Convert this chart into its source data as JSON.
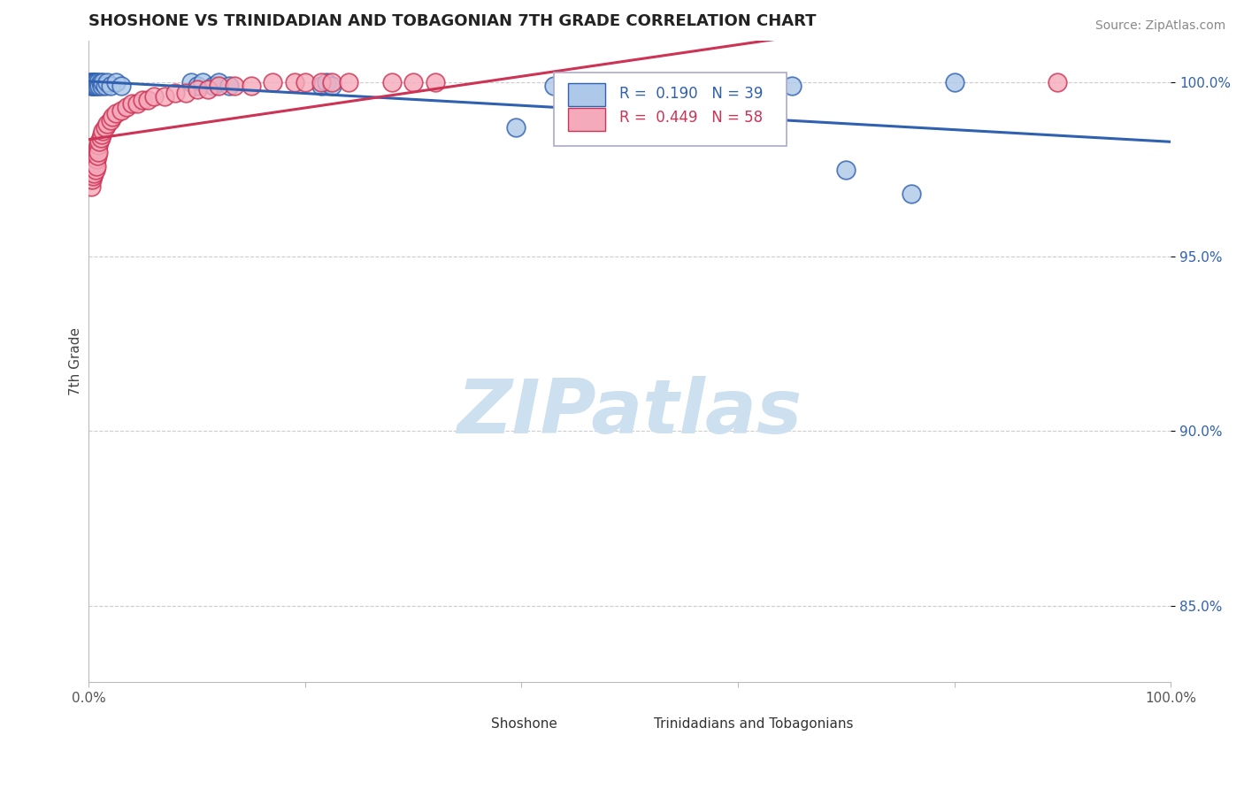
{
  "title": "SHOSHONE VS TRINIDADIAN AND TOBAGONIAN 7TH GRADE CORRELATION CHART",
  "source_text": "Source: ZipAtlas.com",
  "ylabel": "7th Grade",
  "ytick_labels": [
    "85.0%",
    "90.0%",
    "95.0%",
    "100.0%"
  ],
  "ytick_values": [
    0.85,
    0.9,
    0.95,
    1.0
  ],
  "legend_label1": "Shoshone",
  "legend_label2": "Trinidadians and Tobagonians",
  "r1": 0.19,
  "n1": 39,
  "r2": 0.449,
  "n2": 58,
  "blue_color": "#adc8e8",
  "pink_color": "#f5aabb",
  "blue_line_color": "#3060b0",
  "pink_line_color": "#cc3355",
  "watermark_color": "#cce0f0",
  "blue_x": [
    0.001,
    0.002,
    0.002,
    0.003,
    0.003,
    0.004,
    0.004,
    0.005,
    0.005,
    0.006,
    0.006,
    0.007,
    0.008,
    0.009,
    0.01,
    0.011,
    0.012,
    0.013,
    0.015,
    0.017,
    0.02,
    0.025,
    0.03,
    0.095,
    0.1,
    0.105,
    0.115,
    0.12,
    0.13,
    0.215,
    0.22,
    0.225,
    0.395,
    0.43,
    0.5,
    0.65,
    0.7,
    0.76,
    0.8
  ],
  "blue_y": [
    1.0,
    0.999,
    1.0,
    1.0,
    0.999,
    1.0,
    0.999,
    1.0,
    0.999,
    1.0,
    0.999,
    1.0,
    0.999,
    1.0,
    0.999,
    1.0,
    0.999,
    1.0,
    0.999,
    1.0,
    0.999,
    1.0,
    0.999,
    1.0,
    0.999,
    1.0,
    0.999,
    1.0,
    0.999,
    0.999,
    1.0,
    0.999,
    0.987,
    0.999,
    0.999,
    0.999,
    0.975,
    0.968,
    1.0
  ],
  "pink_x": [
    0.001,
    0.001,
    0.002,
    0.002,
    0.002,
    0.003,
    0.003,
    0.003,
    0.004,
    0.004,
    0.004,
    0.005,
    0.005,
    0.005,
    0.006,
    0.006,
    0.006,
    0.007,
    0.007,
    0.007,
    0.008,
    0.008,
    0.009,
    0.009,
    0.01,
    0.011,
    0.012,
    0.013,
    0.015,
    0.017,
    0.02,
    0.022,
    0.025,
    0.03,
    0.035,
    0.04,
    0.045,
    0.05,
    0.055,
    0.06,
    0.07,
    0.08,
    0.09,
    0.1,
    0.11,
    0.12,
    0.135,
    0.15,
    0.17,
    0.19,
    0.2,
    0.215,
    0.225,
    0.24,
    0.28,
    0.3,
    0.32,
    0.895
  ],
  "pink_y": [
    0.975,
    0.973,
    0.974,
    0.972,
    0.97,
    0.976,
    0.974,
    0.972,
    0.977,
    0.975,
    0.973,
    0.978,
    0.976,
    0.974,
    0.979,
    0.977,
    0.975,
    0.98,
    0.978,
    0.976,
    0.981,
    0.979,
    0.982,
    0.98,
    0.983,
    0.984,
    0.985,
    0.986,
    0.987,
    0.988,
    0.989,
    0.99,
    0.991,
    0.992,
    0.993,
    0.994,
    0.994,
    0.995,
    0.995,
    0.996,
    0.996,
    0.997,
    0.997,
    0.998,
    0.998,
    0.999,
    0.999,
    0.999,
    1.0,
    1.0,
    1.0,
    1.0,
    1.0,
    1.0,
    1.0,
    1.0,
    1.0,
    1.0
  ],
  "xlim": [
    0.0,
    1.0
  ],
  "ylim": [
    0.828,
    1.012
  ]
}
